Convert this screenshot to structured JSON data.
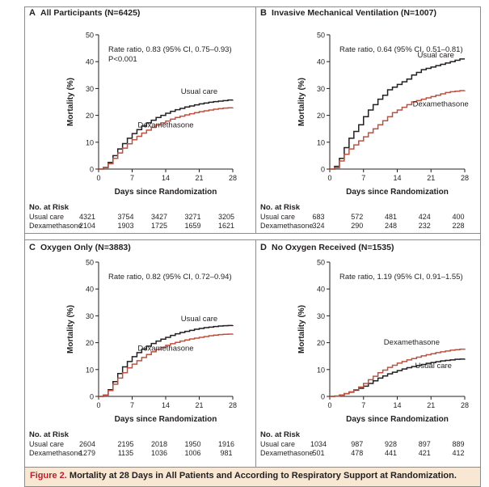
{
  "caption": {
    "label": "Figure 2.",
    "title": "Mortality at 28 Days in All Patients and According to Respiratory Support at Randomization."
  },
  "colors": {
    "usual_care": "#231f20",
    "dexamethasone": "#c0503e",
    "caption_background": "#f8e7d2",
    "caption_label": "#b51f2e"
  },
  "chart_data": [
    {
      "type": "line",
      "panel_letter": "A",
      "title": "All Participants (N=6425)",
      "xlabel": "Days since Randomization",
      "ylabel": "Mortality (%)",
      "xlim": [
        0,
        28
      ],
      "ylim": [
        0,
        50
      ],
      "xticks": [
        0,
        7,
        14,
        21,
        28
      ],
      "yticks": [
        0,
        10,
        20,
        30,
        40,
        50
      ],
      "grid": false,
      "annotation_lines": [
        "Rate ratio, 0.83 (95% CI, 0.75–0.93)",
        "P<0.001"
      ],
      "series": [
        {
          "name": "Usual care",
          "color_key": "usual_care",
          "label_at": [
            21,
            28
          ],
          "x": [
            0,
            1,
            2,
            3,
            4,
            5,
            6,
            7,
            8,
            9,
            10,
            11,
            12,
            13,
            14,
            15,
            16,
            17,
            18,
            19,
            20,
            21,
            22,
            23,
            24,
            25,
            26,
            27,
            28
          ],
          "values": [
            0,
            0.6,
            2.5,
            5.0,
            7.5,
            9.5,
            11.5,
            13.2,
            14.7,
            16.0,
            17.2,
            18.2,
            19.2,
            20.0,
            20.8,
            21.5,
            22.1,
            22.6,
            23.1,
            23.5,
            23.9,
            24.3,
            24.6,
            24.9,
            25.1,
            25.3,
            25.5,
            25.7,
            25.8
          ]
        },
        {
          "name": "Dexamethasone",
          "color_key": "dexamethasone",
          "label_at": [
            14,
            15.5
          ],
          "x": [
            0,
            1,
            2,
            3,
            4,
            5,
            6,
            7,
            8,
            9,
            10,
            11,
            12,
            13,
            14,
            15,
            16,
            17,
            18,
            19,
            20,
            21,
            22,
            23,
            24,
            25,
            26,
            27,
            28
          ],
          "values": [
            0,
            0.5,
            2.0,
            4.0,
            6.0,
            7.8,
            9.4,
            10.9,
            12.2,
            13.4,
            14.5,
            15.5,
            16.4,
            17.2,
            17.9,
            18.6,
            19.2,
            19.7,
            20.2,
            20.6,
            21.0,
            21.4,
            21.7,
            22.0,
            22.3,
            22.5,
            22.7,
            22.8,
            22.9
          ]
        }
      ],
      "at_risk": {
        "heading": "No. at Risk",
        "rows": [
          {
            "label": "Usual care",
            "counts": [
              "4321",
              "3754",
              "3427",
              "3271",
              "3205"
            ]
          },
          {
            "label": "Dexamethasone",
            "counts": [
              "2104",
              "1903",
              "1725",
              "1659",
              "1621"
            ]
          }
        ]
      }
    },
    {
      "type": "line",
      "panel_letter": "B",
      "title": "Invasive Mechanical Ventilation (N=1007)",
      "xlabel": "Days since Randomization",
      "ylabel": "Mortality (%)",
      "xlim": [
        0,
        28
      ],
      "ylim": [
        0,
        50
      ],
      "xticks": [
        0,
        7,
        14,
        21,
        28
      ],
      "yticks": [
        0,
        10,
        20,
        30,
        40,
        50
      ],
      "grid": false,
      "annotation_lines": [
        "Rate ratio, 0.64 (95% CI, 0.51–0.81)"
      ],
      "series": [
        {
          "name": "Usual care",
          "color_key": "usual_care",
          "label_at": [
            22,
            41.5
          ],
          "x": [
            0,
            1,
            2,
            3,
            4,
            5,
            6,
            7,
            8,
            9,
            10,
            11,
            12,
            13,
            14,
            15,
            16,
            17,
            18,
            19,
            20,
            21,
            22,
            23,
            24,
            25,
            26,
            27,
            28
          ],
          "values": [
            0,
            1.0,
            4.0,
            8.0,
            11.5,
            14.0,
            16.5,
            19.5,
            22.0,
            24.0,
            26.0,
            27.5,
            29.5,
            30.5,
            31.5,
            32.5,
            33.5,
            35.0,
            36.0,
            37.0,
            37.5,
            38.0,
            38.5,
            39.0,
            39.5,
            40.0,
            40.5,
            41.0,
            41.0
          ]
        },
        {
          "name": "Dexamethasone",
          "color_key": "dexamethasone",
          "label_at": [
            23,
            23.4
          ],
          "x": [
            0,
            1,
            2,
            3,
            4,
            5,
            6,
            7,
            8,
            9,
            10,
            11,
            12,
            13,
            14,
            15,
            16,
            17,
            18,
            19,
            20,
            21,
            22,
            23,
            24,
            25,
            26,
            27,
            28
          ],
          "values": [
            0,
            0.5,
            3.0,
            5.5,
            7.5,
            9.0,
            10.5,
            12.0,
            13.5,
            15.0,
            16.5,
            18.0,
            19.5,
            21.0,
            22.0,
            23.0,
            24.0,
            25.0,
            25.5,
            26.0,
            26.5,
            27.0,
            27.5,
            28.0,
            28.5,
            28.8,
            29.0,
            29.2,
            29.3
          ]
        }
      ],
      "at_risk": {
        "heading": "No. at Risk",
        "rows": [
          {
            "label": "Usual care",
            "counts": [
              "683",
              "572",
              "481",
              "424",
              "400"
            ]
          },
          {
            "label": "Dexamethasone",
            "counts": [
              "324",
              "290",
              "248",
              "232",
              "228"
            ]
          }
        ]
      }
    },
    {
      "type": "line",
      "panel_letter": "C",
      "title": "Oxygen Only (N=3883)",
      "xlabel": "Days since Randomization",
      "ylabel": "Mortality (%)",
      "xlim": [
        0,
        28
      ],
      "ylim": [
        0,
        50
      ],
      "xticks": [
        0,
        7,
        14,
        21,
        28
      ],
      "yticks": [
        0,
        10,
        20,
        30,
        40,
        50
      ],
      "grid": false,
      "annotation_lines": [
        "Rate ratio, 0.82 (95% CI, 0.72–0.94)"
      ],
      "series": [
        {
          "name": "Usual care",
          "color_key": "usual_care",
          "label_at": [
            21,
            28
          ],
          "x": [
            0,
            1,
            2,
            3,
            4,
            5,
            6,
            7,
            8,
            9,
            10,
            11,
            12,
            13,
            14,
            15,
            16,
            17,
            18,
            19,
            20,
            21,
            22,
            23,
            24,
            25,
            26,
            27,
            28
          ],
          "values": [
            0,
            0.5,
            2.5,
            5.5,
            8.5,
            11.0,
            13.0,
            14.8,
            16.3,
            17.6,
            18.7,
            19.7,
            20.6,
            21.3,
            22.0,
            22.7,
            23.3,
            23.8,
            24.2,
            24.6,
            25.0,
            25.3,
            25.6,
            25.8,
            26.0,
            26.2,
            26.3,
            26.4,
            26.5
          ]
        },
        {
          "name": "Dexamethasone",
          "color_key": "dexamethasone",
          "label_at": [
            14,
            17
          ],
          "x": [
            0,
            1,
            2,
            3,
            4,
            5,
            6,
            7,
            8,
            9,
            10,
            11,
            12,
            13,
            14,
            15,
            16,
            17,
            18,
            19,
            20,
            21,
            22,
            23,
            24,
            25,
            26,
            27,
            28
          ],
          "values": [
            0,
            0.5,
            2.2,
            4.5,
            6.8,
            8.8,
            10.6,
            12.0,
            13.3,
            14.5,
            15.6,
            16.6,
            17.5,
            18.3,
            19.0,
            19.6,
            20.1,
            20.6,
            21.0,
            21.4,
            21.7,
            22.0,
            22.3,
            22.6,
            22.8,
            23.0,
            23.1,
            23.2,
            23.3
          ]
        }
      ],
      "at_risk": {
        "heading": "No. at Risk",
        "rows": [
          {
            "label": "Usual care",
            "counts": [
              "2604",
              "2195",
              "2018",
              "1950",
              "1916"
            ]
          },
          {
            "label": "Dexamethasone",
            "counts": [
              "1279",
              "1135",
              "1036",
              "1006",
              "981"
            ]
          }
        ]
      }
    },
    {
      "type": "line",
      "panel_letter": "D",
      "title": "No Oxygen Received (N=1535)",
      "xlabel": "Days since Randomization",
      "ylabel": "Mortality (%)",
      "xlim": [
        0,
        28
      ],
      "ylim": [
        0,
        50
      ],
      "xticks": [
        0,
        7,
        14,
        21,
        28
      ],
      "yticks": [
        0,
        10,
        20,
        30,
        40,
        50
      ],
      "grid": false,
      "annotation_lines": [
        "Rate ratio, 1.19 (95% CI, 0.91–1.55)"
      ],
      "series": [
        {
          "name": "Usual care",
          "color_key": "usual_care",
          "label_at": [
            21.5,
            10.5
          ],
          "x": [
            0,
            1,
            2,
            3,
            4,
            5,
            6,
            7,
            8,
            9,
            10,
            11,
            12,
            13,
            14,
            15,
            16,
            17,
            18,
            19,
            20,
            21,
            22,
            23,
            24,
            25,
            26,
            27,
            28
          ],
          "values": [
            0,
            0.1,
            0.5,
            1.0,
            1.6,
            2.3,
            3.0,
            3.8,
            4.8,
            5.8,
            6.8,
            7.6,
            8.4,
            9.0,
            9.6,
            10.2,
            10.7,
            11.1,
            11.5,
            11.9,
            12.3,
            12.6,
            12.9,
            13.2,
            13.4,
            13.6,
            13.8,
            13.9,
            14.0
          ]
        },
        {
          "name": "Dexamethasone",
          "color_key": "dexamethasone",
          "label_at": [
            17,
            19.3
          ],
          "x": [
            0,
            1,
            2,
            3,
            4,
            5,
            6,
            7,
            8,
            9,
            10,
            11,
            12,
            13,
            14,
            15,
            16,
            17,
            18,
            19,
            20,
            21,
            22,
            23,
            24,
            25,
            26,
            27,
            28
          ],
          "values": [
            0,
            0.1,
            0.5,
            1.0,
            1.7,
            2.5,
            3.5,
            4.8,
            6.2,
            7.5,
            8.8,
            9.8,
            10.8,
            11.6,
            12.4,
            13.0,
            13.6,
            14.1,
            14.6,
            15.1,
            15.5,
            15.9,
            16.3,
            16.6,
            16.9,
            17.2,
            17.4,
            17.6,
            17.8
          ]
        }
      ],
      "at_risk": {
        "heading": "No. at Risk",
        "rows": [
          {
            "label": "Usual care",
            "counts": [
              "1034",
              "987",
              "928",
              "897",
              "889"
            ]
          },
          {
            "label": "Dexamethasone",
            "counts": [
              "501",
              "478",
              "441",
              "421",
              "412"
            ]
          }
        ]
      }
    }
  ]
}
